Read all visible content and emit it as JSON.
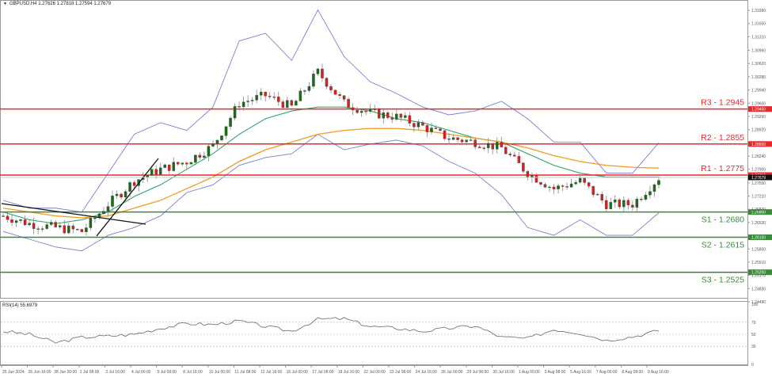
{
  "header": {
    "symbol_line": "GBPUSD,H4  1.27626 1.27818 1.27594 1.27679",
    "symbol": "GBPUSD",
    "timeframe": "H4",
    "open": "1.27626",
    "high": "1.27818",
    "low": "1.27594",
    "close": "1.27679"
  },
  "price_axis": {
    "ticks": [
      "1.31990",
      "1.31650",
      "1.31310",
      "1.30960",
      "1.30620",
      "1.30280",
      "1.29940",
      "1.29600",
      "1.29260",
      "1.28920",
      "1.28240",
      "1.27900",
      "1.27550",
      "1.27210",
      "1.26870",
      "1.26530",
      "1.25850",
      "1.25510",
      "1.25170",
      "1.24830",
      "1.24490"
    ],
    "current_price_tag": "1.27679",
    "colors": {
      "resistance": "#e8282b",
      "support": "#3a8a3a",
      "current": "#000000"
    }
  },
  "levels": [
    {
      "id": "R3",
      "label": "R3 - 1.2945",
      "value": 1.2945,
      "tag": "1.29450",
      "type": "resistance"
    },
    {
      "id": "R2",
      "label": "R2 - 1.2855",
      "value": 1.2855,
      "tag": "1.28550",
      "type": "resistance"
    },
    {
      "id": "R1",
      "label": "R1 - 1.2775",
      "value": 1.2775,
      "tag": "1.27750",
      "type": "resistance"
    },
    {
      "id": "S1",
      "label": "S1 - 1.2680",
      "value": 1.268,
      "tag": "1.26800",
      "type": "support"
    },
    {
      "id": "S2",
      "label": "S2 - 1.2615",
      "value": 1.2615,
      "tag": "1.26150",
      "type": "support"
    },
    {
      "id": "S3",
      "label": "S3 - 1.2525",
      "value": 1.2525,
      "tag": "1.25250",
      "type": "support"
    }
  ],
  "rsi": {
    "label": "RSI(14) 55.6979",
    "axis_ticks": [
      "100",
      "70",
      "50",
      "30",
      "0"
    ]
  },
  "time_axis": {
    "ticks": [
      "25 Jun 2024",
      "26 Jun 16:00",
      "28 Jun 00:00",
      "1 Jul 08:00",
      "2 Jul 16:00",
      "4 Jul 00:00",
      "5 Jul 08:00",
      "8 Jul 16:00",
      "10 Jul 00:00",
      "11 Jul 08:00",
      "12 Jul 16:00",
      "16 Jul 00:00",
      "17 Jul 08:00",
      "18 Jul 16:00",
      "22 Jul 00:00",
      "23 Jul 08:00",
      "24 Jul 16:00",
      "26 Jul 00:00",
      "29 Jul 08:00",
      "30 Jul 16:00",
      "1 Aug 00:00",
      "2 Aug 08:00",
      "5 Aug 16:00",
      "7 Aug 00:00",
      "8 Aug 08:00",
      "9 Aug 16:00"
    ]
  },
  "chart_data": [
    {
      "type": "candlestick",
      "title": "GBPUSD,H4 1.27626 1.27818 1.27594 1.27679",
      "xlabel": "",
      "ylabel": "",
      "ylim": [
        1.2449,
        1.3199
      ],
      "x": [
        "25 Jun 2024",
        "26 Jun 16:00",
        "28 Jun 00:00",
        "1 Jul 08:00",
        "2 Jul 16:00",
        "4 Jul 00:00",
        "5 Jul 08:00",
        "8 Jul 16:00",
        "10 Jul 00:00",
        "11 Jul 08:00",
        "12 Jul 16:00",
        "16 Jul 00:00",
        "17 Jul 08:00",
        "18 Jul 16:00",
        "22 Jul 00:00",
        "23 Jul 08:00",
        "24 Jul 16:00",
        "26 Jul 00:00",
        "29 Jul 08:00",
        "30 Jul 16:00",
        "1 Aug 00:00",
        "2 Aug 08:00",
        "5 Aug 16:00",
        "7 Aug 00:00",
        "8 Aug 08:00",
        "9 Aug 16:00"
      ],
      "series": [
        {
          "name": "Close (approx)",
          "values": [
            1.267,
            1.265,
            1.264,
            1.263,
            1.27,
            1.276,
            1.279,
            1.281,
            1.285,
            1.296,
            1.298,
            1.295,
            1.304,
            1.296,
            1.2935,
            1.2925,
            1.29,
            1.287,
            1.286,
            1.2845,
            1.278,
            1.274,
            1.276,
            1.27,
            1.27,
            1.2768
          ]
        },
        {
          "name": "MA (green)",
          "values": [
            1.268,
            1.266,
            1.265,
            1.266,
            1.268,
            1.272,
            1.275,
            1.279,
            1.283,
            1.288,
            1.292,
            1.294,
            1.295,
            1.295,
            1.294,
            1.292,
            1.291,
            1.289,
            1.287,
            1.286,
            1.283,
            1.28,
            1.278,
            1.277,
            1.277,
            1.277
          ]
        },
        {
          "name": "MA (orange)",
          "values": [
            1.269,
            1.268,
            1.267,
            1.2665,
            1.267,
            1.269,
            1.271,
            1.274,
            1.277,
            1.281,
            1.284,
            1.286,
            1.288,
            1.289,
            1.2895,
            1.2895,
            1.289,
            1.288,
            1.287,
            1.286,
            1.2845,
            1.2825,
            1.281,
            1.28,
            1.2795,
            1.2793
          ]
        }
      ],
      "horizontal_levels": [
        {
          "label": "R3 - 1.2945",
          "value": 1.2945,
          "color": "#e8282b"
        },
        {
          "label": "R2 - 1.2855",
          "value": 1.2855,
          "color": "#e8282b"
        },
        {
          "label": "R1 - 1.2775",
          "value": 1.2775,
          "color": "#e8282b"
        },
        {
          "label": "S1 - 1.2680",
          "value": 1.268,
          "color": "#3a8a3a"
        },
        {
          "label": "S2 - 1.2615",
          "value": 1.2615,
          "color": "#3a8a3a"
        },
        {
          "label": "S3 - 1.2525",
          "value": 1.2525,
          "color": "#3a8a3a"
        }
      ],
      "indicators": [
        "Bollinger Bands (slate blue)",
        "Moving average (green)",
        "Moving average (orange)",
        "Trendlines (black)"
      ],
      "grid": false,
      "legend": "none"
    },
    {
      "type": "line",
      "title": "RSI(14) 55.6979",
      "ylim": [
        0,
        100
      ],
      "reference_lines": [
        70,
        50,
        30
      ],
      "x": [
        "25 Jun 2024",
        "26 Jun 16:00",
        "28 Jun 00:00",
        "1 Jul 08:00",
        "2 Jul 16:00",
        "4 Jul 00:00",
        "5 Jul 08:00",
        "8 Jul 16:00",
        "10 Jul 00:00",
        "11 Jul 08:00",
        "12 Jul 16:00",
        "16 Jul 00:00",
        "17 Jul 08:00",
        "18 Jul 16:00",
        "22 Jul 00:00",
        "23 Jul 08:00",
        "24 Jul 16:00",
        "26 Jul 00:00",
        "29 Jul 08:00",
        "30 Jul 16:00",
        "1 Aug 00:00",
        "2 Aug 08:00",
        "5 Aug 16:00",
        "7 Aug 00:00",
        "8 Aug 08:00",
        "9 Aug 16:00"
      ],
      "values": [
        55,
        50,
        36,
        45,
        47,
        50,
        60,
        68,
        66,
        72,
        63,
        55,
        75,
        76,
        63,
        60,
        55,
        60,
        64,
        45,
        43,
        58,
        52,
        40,
        46,
        56
      ]
    }
  ]
}
